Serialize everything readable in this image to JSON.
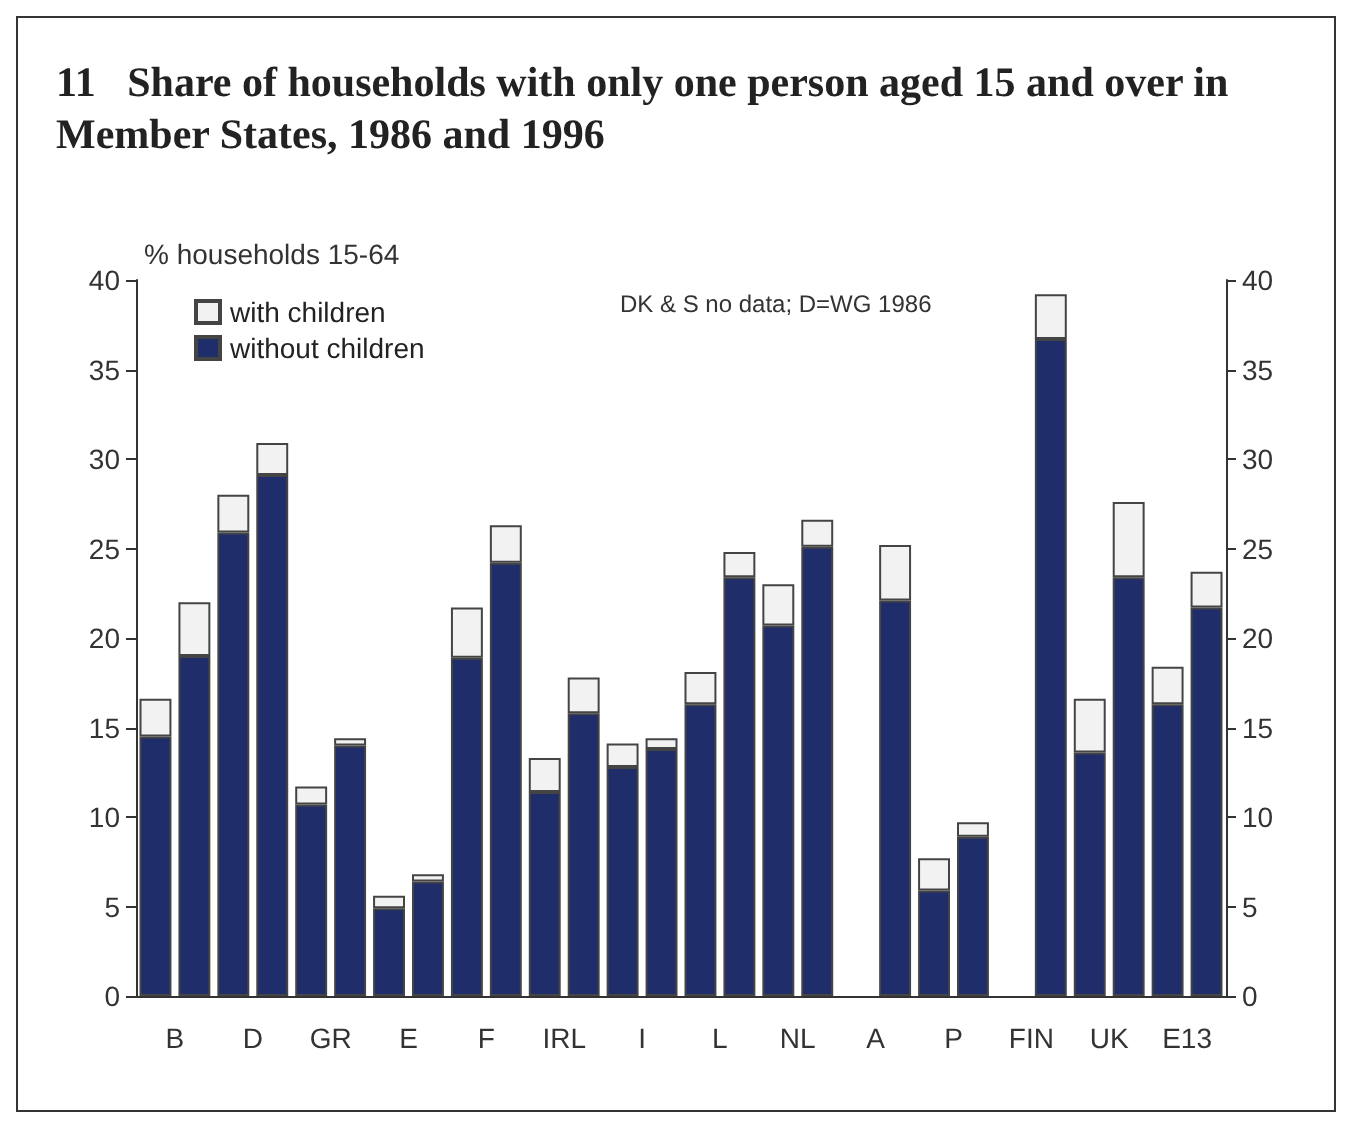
{
  "chart_data": {
    "type": "bar",
    "stacked": true,
    "title": "11   Share of households with only one person aged 15 and over in Member States, 1986 and 1996",
    "ylabel": "% households 15-64",
    "annotations": [
      "DK & S no data; D=WG 1986"
    ],
    "categories": [
      "B",
      null,
      "D",
      null,
      "GR",
      null,
      "E",
      null,
      "F",
      null,
      "IRL",
      null,
      "I",
      null,
      "L",
      null,
      "NL",
      null,
      "A",
      null,
      "P",
      null,
      "FIN",
      null,
      "UK",
      null,
      "E13",
      null
    ],
    "series": [
      {
        "name": "without children",
        "color": "#1f2d6b",
        "values": [
          14.5,
          19.0,
          25.9,
          29.1,
          10.7,
          14.0,
          4.9,
          6.4,
          18.9,
          24.2,
          11.4,
          15.8,
          12.8,
          13.8,
          16.3,
          23.4,
          20.7,
          25.1,
          null,
          22.1,
          5.9,
          8.9,
          null,
          36.7,
          13.6,
          23.4,
          16.3,
          21.7
        ]
      },
      {
        "name": "with children",
        "color": "#f2f2f2",
        "values": [
          2.1,
          3.0,
          2.1,
          1.8,
          1.0,
          0.4,
          0.7,
          0.4,
          2.8,
          2.1,
          1.9,
          2.0,
          1.3,
          0.6,
          1.8,
          1.4,
          2.3,
          1.5,
          null,
          3.1,
          1.8,
          0.8,
          null,
          2.5,
          3.0,
          4.2,
          2.1,
          2.0
        ]
      }
    ],
    "ylim": [
      0,
      40
    ],
    "yticks": [
      0,
      5,
      10,
      15,
      20,
      25,
      30,
      35,
      40
    ],
    "y2lim": [
      0,
      40
    ],
    "y2ticks": [
      0,
      5,
      10,
      15,
      20,
      25,
      30,
      35,
      40
    ],
    "legend": "top left",
    "grid": false
  }
}
